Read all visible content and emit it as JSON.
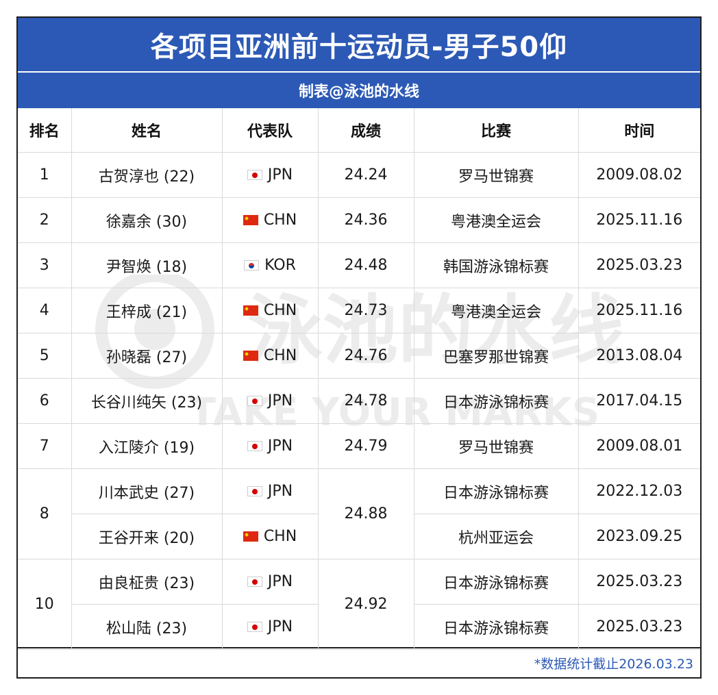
{
  "title": "各项目亚洲前十运动员-男子50仰",
  "subtitle": "制表@泳池的水线",
  "headers": [
    "排名",
    "姓名",
    "代表队",
    "成绩",
    "比赛",
    "时间"
  ],
  "rows": [
    {
      "rank": "1",
      "name": "古贺淳也 (22)",
      "flag": "jpn",
      "team": "JPN",
      "time": "24.24",
      "meet": "罗马世锦赛",
      "date": "2009.08.02"
    },
    {
      "rank": "2",
      "name": "徐嘉余 (30)",
      "flag": "chn",
      "team": "CHN",
      "time": "24.36",
      "meet": "粤港澳全运会",
      "date": "2025.11.16"
    },
    {
      "rank": "3",
      "name": "尹智焕 (18)",
      "flag": "kor",
      "team": "KOR",
      "time": "24.48",
      "meet": "韩国游泳锦标赛",
      "date": "2025.03.23"
    },
    {
      "rank": "4",
      "name": "王梓成 (21)",
      "flag": "chn",
      "team": "CHN",
      "time": "24.73",
      "meet": "粤港澳全运会",
      "date": "2025.11.16"
    },
    {
      "rank": "5",
      "name": "孙晓磊 (27)",
      "flag": "chn",
      "team": "CHN",
      "time": "24.76",
      "meet": "巴塞罗那世锦赛",
      "date": "2013.08.04"
    },
    {
      "rank": "6",
      "name": "长谷川纯矢 (23)",
      "flag": "jpn",
      "team": "JPN",
      "time": "24.78",
      "meet": "日本游泳锦标赛",
      "date": "2017.04.15"
    },
    {
      "rank": "7",
      "name": "入江陵介 (19)",
      "flag": "jpn",
      "team": "JPN",
      "time": "24.79",
      "meet": "罗马世锦赛",
      "date": "2009.08.01"
    },
    {
      "rank": "8",
      "name": "川本武史 (27)",
      "flag": "jpn",
      "team": "JPN",
      "time": "24.88",
      "meet": "日本游泳锦标赛",
      "date": "2022.12.03"
    },
    {
      "name": "王谷开来 (20)",
      "flag": "chn",
      "team": "CHN",
      "meet": "杭州亚运会",
      "date": "2023.09.25"
    },
    {
      "rank": "10",
      "name": "由良柾贵 (23)",
      "flag": "jpn",
      "team": "JPN",
      "time": "24.92",
      "meet": "日本游泳锦标赛",
      "date": "2025.03.23"
    },
    {
      "name": "松山陆 (23)",
      "flag": "jpn",
      "team": "JPN",
      "meet": "日本游泳锦标赛",
      "date": "2025.03.23"
    }
  ],
  "footer_note": "*数据统计截止2026.03.23",
  "watermark": {
    "text": "泳池的水线",
    "subtext": "TAKE YOUR MARKS"
  },
  "colors": {
    "header_blue": "#2c59b5",
    "footer_text": "#2c59b5",
    "border": "#d9d9d9"
  },
  "icons": {
    "jpn": "japan-flag-icon",
    "chn": "china-flag-icon",
    "kor": "korea-flag-icon"
  }
}
